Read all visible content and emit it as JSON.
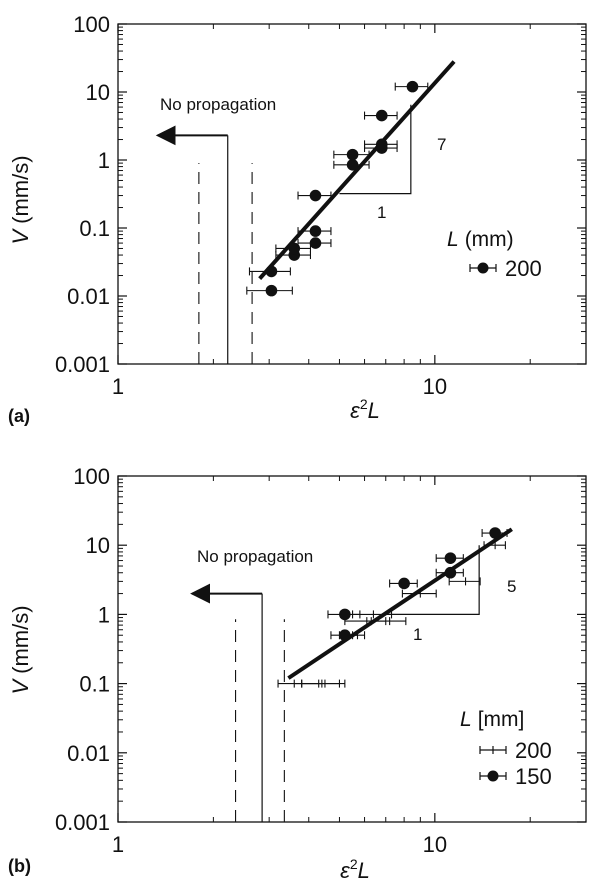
{
  "chart_data": [
    {
      "panel_label": "(a)",
      "type": "scatter",
      "xlabel_symbol": "ε",
      "xlabel_sup": "2",
      "xlabel_var": "L",
      "ylabel_var": "V",
      "ylabel_unit": "(mm/s)",
      "xscale": "log",
      "yscale": "log",
      "xlim": [
        1,
        30
      ],
      "ylim": [
        0.001,
        100
      ],
      "x_ticks": [
        "1",
        "10"
      ],
      "y_ticks": [
        "0.001",
        "0.01",
        "0.1",
        "1",
        "10",
        "100"
      ],
      "legend": {
        "title_var": "L",
        "title_unit": "(mm)",
        "entries": [
          "200"
        ],
        "placement": "right"
      },
      "annotations": {
        "no_propagation": "No propagation",
        "slope_run": "1",
        "slope_rise": "7"
      },
      "no_propagation_x": 2.22,
      "dashed_x": [
        1.8,
        2.65
      ],
      "fit_line": {
        "x": [
          2.8,
          11.5
        ],
        "y": [
          0.018,
          28
        ]
      },
      "slope_triangle": {
        "x": [
          5.0,
          8.4
        ],
        "y": [
          0.32,
          6.5
        ]
      },
      "series": [
        {
          "name": "200",
          "marker": "circle",
          "points": [
            {
              "x": 3.05,
              "y": 0.012,
              "xerr": 0.5
            },
            {
              "x": 3.05,
              "y": 0.023,
              "xerr": 0.45
            },
            {
              "x": 3.6,
              "y": 0.04,
              "xerr": 0.45
            },
            {
              "x": 3.6,
              "y": 0.05,
              "xerr": 0.45
            },
            {
              "x": 4.2,
              "y": 0.06,
              "xerr": 0.5
            },
            {
              "x": 4.2,
              "y": 0.09,
              "xerr": 0.5
            },
            {
              "x": 4.2,
              "y": 0.3,
              "xerr": 0.5
            },
            {
              "x": 5.5,
              "y": 0.85,
              "xerr": 0.7
            },
            {
              "x": 5.5,
              "y": 1.2,
              "xerr": 0.7
            },
            {
              "x": 6.8,
              "y": 1.5,
              "xerr": 0.8
            },
            {
              "x": 6.8,
              "y": 1.7,
              "xerr": 0.8
            },
            {
              "x": 6.8,
              "y": 4.5,
              "xerr": 0.8
            },
            {
              "x": 8.5,
              "y": 12,
              "xerr": 1.0
            }
          ]
        }
      ]
    },
    {
      "panel_label": "(b)",
      "type": "scatter",
      "xlabel_symbol": "ε",
      "xlabel_sup": "2",
      "xlabel_var": "L",
      "ylabel_var": "V",
      "ylabel_unit": "(mm/s)",
      "xscale": "log",
      "yscale": "log",
      "xlim": [
        1,
        30
      ],
      "ylim": [
        0.001,
        100
      ],
      "x_ticks": [
        "1",
        "10"
      ],
      "y_ticks": [
        "0.001",
        "0.01",
        "0.1",
        "1",
        "10",
        "100"
      ],
      "legend": {
        "title_var": "L",
        "title_unit": "[mm]",
        "entries": [
          "200",
          "150"
        ],
        "placement": "right"
      },
      "annotations": {
        "no_propagation": "No propagation",
        "slope_run": "1",
        "slope_rise": "5"
      },
      "no_propagation_x": 2.85,
      "dashed_x": [
        2.35,
        3.35
      ],
      "fit_line": {
        "x": [
          3.45,
          17.5
        ],
        "y": [
          0.12,
          17
        ]
      },
      "slope_triangle": {
        "x": [
          6.9,
          13.8
        ],
        "y": [
          1.0,
          10
        ]
      },
      "series": [
        {
          "name": "200",
          "marker": "none",
          "points": [
            {
              "x": 3.8,
              "y": 0.1,
              "xerr": 0.6
            },
            {
              "x": 4.3,
              "y": 0.1,
              "xerr": 0.7
            },
            {
              "x": 4.5,
              "y": 0.1,
              "xerr": 0.7
            },
            {
              "x": 5.5,
              "y": 0.5,
              "xerr": 0.5
            },
            {
              "x": 6.1,
              "y": 0.8,
              "xerr": 0.9
            },
            {
              "x": 6.4,
              "y": 1.0,
              "xerr": 0.9
            },
            {
              "x": 7.2,
              "y": 0.8,
              "xerr": 0.9
            },
            {
              "x": 9.0,
              "y": 2.0,
              "xerr": 1.1
            },
            {
              "x": 12.5,
              "y": 3.0,
              "xerr": 1.4
            },
            {
              "x": 15.5,
              "y": 10,
              "xerr": 1.2
            }
          ]
        },
        {
          "name": "150",
          "marker": "circle",
          "points": [
            {
              "x": 5.2,
              "y": 0.5,
              "xerr": 0.5
            },
            {
              "x": 5.2,
              "y": 1.0,
              "xerr": 0.6
            },
            {
              "x": 8.0,
              "y": 2.8,
              "xerr": 0.8
            },
            {
              "x": 11.2,
              "y": 4.0,
              "xerr": 1.1
            },
            {
              "x": 11.2,
              "y": 6.5,
              "xerr": 1.1
            },
            {
              "x": 15.5,
              "y": 15,
              "xerr": 1.4
            }
          ]
        }
      ]
    }
  ]
}
